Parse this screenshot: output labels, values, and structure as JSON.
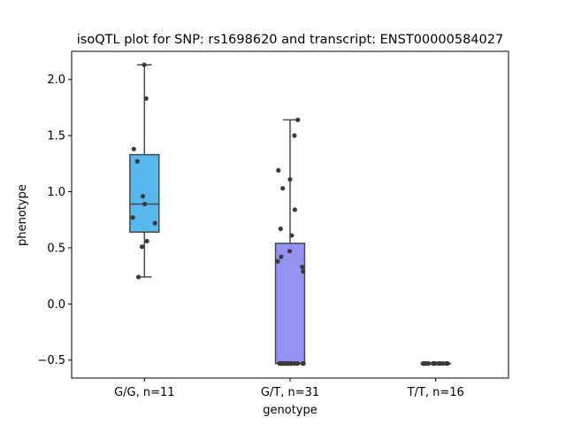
{
  "chart_data": {
    "type": "box",
    "title": "isoQTL plot for SNP: rs1698620 and transcript: ENST00000584027",
    "xlabel": "genotype",
    "ylabel": "phenotype",
    "ylim": [
      -0.66,
      2.25
    ],
    "yticks": [
      -0.5,
      0.0,
      0.5,
      1.0,
      1.5,
      2.0
    ],
    "ytick_labels": [
      "−0.5",
      "0.0",
      "0.5",
      "1.0",
      "1.5",
      "2.0"
    ],
    "categories": [
      "G/G, n=11",
      "G/T, n=31",
      "T/T, n=16"
    ],
    "colors": [
      "#56b8ed",
      "#9393f3",
      "#e8a1f0"
    ],
    "grid": false,
    "legend": "none",
    "boxes": [
      {
        "category": "G/G, n=11",
        "whisker_low": 0.24,
        "q1": 0.64,
        "median": 0.89,
        "q3": 1.33,
        "whisker_high": 2.13
      },
      {
        "category": "G/T, n=31",
        "whisker_low": -0.53,
        "q1": -0.53,
        "median": -0.53,
        "q3": 0.54,
        "whisker_high": 1.64
      },
      {
        "category": "T/T, n=16",
        "whisker_low": -0.53,
        "q1": -0.53,
        "median": -0.53,
        "q3": -0.53,
        "whisker_high": -0.53
      }
    ],
    "points": [
      [
        2.13,
        1.83,
        1.38,
        1.27,
        0.96,
        0.89,
        0.77,
        0.72,
        0.56,
        0.51,
        0.24
      ],
      [
        1.64,
        1.5,
        1.19,
        1.11,
        1.03,
        0.84,
        0.67,
        0.61,
        0.47,
        0.42,
        0.38,
        0.33,
        0.29,
        -0.53,
        -0.53,
        -0.53,
        -0.53,
        -0.53,
        -0.53,
        -0.53,
        -0.53,
        -0.53,
        -0.53,
        -0.53,
        -0.53,
        -0.53,
        -0.53,
        -0.53,
        -0.53,
        -0.53,
        -0.53
      ],
      [
        -0.53,
        -0.53,
        -0.53,
        -0.53,
        -0.53,
        -0.53,
        -0.53,
        -0.53,
        -0.53,
        -0.53,
        -0.53,
        -0.53,
        -0.53,
        -0.53,
        -0.53,
        -0.53
      ]
    ]
  }
}
